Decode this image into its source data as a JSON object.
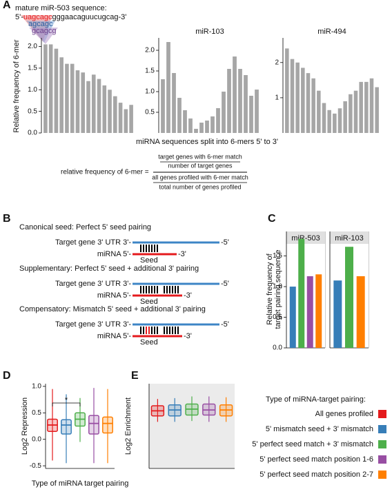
{
  "panel_labels": [
    "A",
    "B",
    "C",
    "D",
    "E"
  ],
  "panel_a": {
    "heading": "mature miR-503 sequence:",
    "sequence": [
      "5'-",
      "uagcagc",
      "gggaacaguucugcag-3'"
    ],
    "kmers": [
      "agcagc",
      "gcagcg"
    ],
    "ylabel": "Relative frequency of 6-mer",
    "xlabel": "miRNA sequences split into 6-mers 5' to 3'",
    "formula": {
      "lhs": "relative frequency of 6-mer =",
      "num_top": "target genes with 6-mer match",
      "num_bottom": "number of target genes",
      "den_top": "all genes profiled with 6-mer match",
      "den_bottom": "total number of genes profiled"
    }
  },
  "panel_b": [
    {
      "title": "Canonical seed: Perfect 5' seed pairing",
      "target": "Target gene 3' UTR  3'-",
      "target_end": "-5'",
      "mirna": "miRNA 5'-",
      "mirna_end": "-3'",
      "seed": "Seed"
    },
    {
      "title": "Supplementary: Perfect 5' seed + additional 3' pairing",
      "target": "Target gene 3' UTR  3'-",
      "target_end": "-5'",
      "mirna": "miRNA 5'-",
      "mirna_end": "-3'",
      "seed": "Seed"
    },
    {
      "title": "Compensatory: Mismatch 5' seed + additional 3' pairing",
      "target": "Target gene 3' UTR  3'-",
      "target_end": "-5'",
      "mirna": "miRNA 5'-",
      "mirna_end": "-3'",
      "seed": "Seed"
    }
  ],
  "chart_data": [
    {
      "type": "bar",
      "color": "#a6a6a6",
      "categories": [
        null,
        null,
        null,
        null,
        null,
        null,
        null,
        null,
        null,
        null,
        null,
        null,
        null,
        null,
        null,
        null,
        null
      ],
      "values": [
        2.05,
        2.05,
        1.95,
        1.75,
        1.6,
        1.6,
        1.45,
        1.4,
        1.2,
        1.35,
        1.25,
        1.1,
        1.0,
        0.85,
        0.7,
        0.55,
        0.65
      ],
      "ylim": [
        0,
        2.2
      ],
      "yticks": [
        {
          "value": 0,
          "label": "0.0"
        },
        0.5,
        {
          "value": 1,
          "label": "1.0"
        },
        1.5,
        {
          "value": 2,
          "label": "2.0"
        }
      ]
    },
    {
      "type": "bar",
      "title": "miR-103",
      "color": "#a6a6a6",
      "categories": [
        null,
        null,
        null,
        null,
        null,
        null,
        null,
        null,
        null,
        null,
        null,
        null,
        null,
        null,
        null,
        null,
        null,
        null
      ],
      "values": [
        1.3,
        2.2,
        1.45,
        0.85,
        0.55,
        0.35,
        0.1,
        0.25,
        0.3,
        0.4,
        0.6,
        1.0,
        1.55,
        1.85,
        1.55,
        1.4,
        0.9,
        1.05
      ],
      "ylim": [
        0,
        2.3
      ],
      "yticks": [
        0.5,
        {
          "value": 1,
          "label": "1.0"
        },
        1.5,
        {
          "value": 2,
          "label": "2.0"
        }
      ]
    },
    {
      "type": "bar",
      "title": "miR-494",
      "color": "#a6a6a6",
      "categories": [
        null,
        null,
        null,
        null,
        null,
        null,
        null,
        null,
        null,
        null,
        null,
        null,
        null,
        null,
        null,
        null,
        null,
        null
      ],
      "values": [
        2.4,
        2.1,
        2.0,
        1.85,
        1.7,
        1.55,
        1.2,
        0.85,
        0.65,
        0.55,
        0.7,
        0.9,
        1.1,
        1.2,
        1.45,
        1.45,
        1.55,
        1.3
      ],
      "ylim": [
        0,
        2.7
      ],
      "yticks": [
        1,
        2
      ]
    },
    {
      "type": "bar",
      "title": "miR-503",
      "ylabel": [
        "Relative frequency of",
        "target pairing sequence"
      ],
      "categories": [
        null,
        null,
        null,
        null
      ],
      "values": [
        1.0,
        1.78,
        1.17,
        1.2
      ],
      "colors": [
        "#377eb8",
        "#4daf4a",
        "#984ea3",
        "#ff7f00"
      ],
      "ylim": [
        0,
        1.9
      ],
      "yticks": [
        {
          "value": 0,
          "label": "0.0"
        },
        0.5,
        {
          "value": 1,
          "label": "1.0"
        },
        1.5
      ]
    },
    {
      "type": "bar",
      "title": "miR-103",
      "categories": [
        null,
        null,
        null
      ],
      "values": [
        1.1,
        1.65,
        1.17
      ],
      "colors": [
        "#377eb8",
        "#4daf4a",
        "#ff7f00"
      ],
      "ylim": [
        0,
        1.9
      ]
    },
    {
      "type": "box",
      "ylabel": "Log2 Repression",
      "xlabel": "Type of miRNA target pairing",
      "significance": "*",
      "legend_title": "Type of miRNA-target pairing:",
      "ylim": [
        -0.55,
        1.05
      ],
      "yticks": [
        -0.5,
        {
          "value": 0,
          "label": "0.0"
        },
        0.5,
        {
          "value": 1,
          "label": "1.0"
        }
      ],
      "series": [
        {
          "name": "All genes profiled",
          "color": "#e41a1c",
          "whislo": -0.4,
          "q1": 0.15,
          "med": 0.27,
          "q3": 0.38,
          "whishi": 0.95
        },
        {
          "name": "5' mismatch seed + 3' mismatch",
          "color": "#377eb8",
          "whislo": -0.45,
          "q1": 0.1,
          "med": 0.27,
          "q3": 0.37,
          "whishi": 0.85
        },
        {
          "name": "5' perfect seed match + 3' mismatch",
          "color": "#4daf4a",
          "whislo": -0.05,
          "q1": 0.25,
          "med": 0.38,
          "q3": 0.5,
          "whishi": 0.78
        },
        {
          "name": "5' perfect seed match position 1-6",
          "color": "#984ea3",
          "whislo": -0.45,
          "q1": 0.1,
          "med": 0.3,
          "q3": 0.45,
          "whishi": 0.97
        },
        {
          "name": "5' perfect seed match position 2-7",
          "color": "#ff7f00",
          "whislo": -0.45,
          "q1": 0.12,
          "med": 0.3,
          "q3": 0.42,
          "whishi": 0.95
        }
      ]
    },
    {
      "type": "box",
      "ylabel": "Log2 Enrichment",
      "ylim": [
        0,
        1
      ],
      "series": [
        {
          "color": "#e41a1c",
          "whislo": 0.55,
          "q1": 0.62,
          "med": 0.68,
          "q3": 0.74,
          "whishi": 0.82
        },
        {
          "color": "#377eb8",
          "whislo": 0.55,
          "q1": 0.62,
          "med": 0.69,
          "q3": 0.75,
          "whishi": 0.83
        },
        {
          "color": "#4daf4a",
          "whislo": 0.56,
          "q1": 0.63,
          "med": 0.7,
          "q3": 0.76,
          "whishi": 0.85
        },
        {
          "color": "#984ea3",
          "whislo": 0.55,
          "q1": 0.63,
          "med": 0.69,
          "q3": 0.76,
          "whishi": 0.85
        },
        {
          "color": "#ff7f00",
          "whislo": 0.55,
          "q1": 0.62,
          "med": 0.69,
          "q3": 0.75,
          "whishi": 0.84
        }
      ]
    }
  ]
}
